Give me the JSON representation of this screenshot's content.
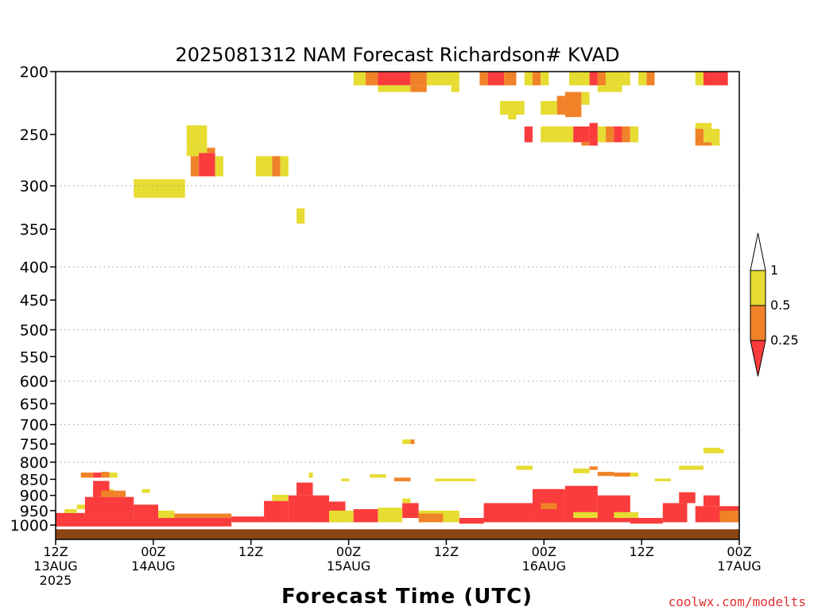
{
  "chart_data": {
    "type": "heatmap",
    "title": "2025081312 NAM Forecast Richardson# KVAD",
    "xlabel": "Forecast Time (UTC)",
    "ylabel": "",
    "y_scale": "log-pressure",
    "ylim": [
      1000,
      200
    ],
    "xlim": [
      0,
      84
    ],
    "y_ticks": [
      200,
      250,
      300,
      350,
      400,
      450,
      500,
      550,
      600,
      650,
      700,
      750,
      800,
      850,
      900,
      950,
      1000
    ],
    "y_gridlines": [
      300,
      400,
      500,
      600,
      700,
      800
    ],
    "x_ticks": [
      {
        "hour": 0,
        "line1": "12Z",
        "line2": "13AUG",
        "line3": "2025"
      },
      {
        "hour": 12,
        "line1": "00Z",
        "line2": "14AUG",
        "line3": ""
      },
      {
        "hour": 24,
        "line1": "12Z",
        "line2": "",
        "line3": ""
      },
      {
        "hour": 36,
        "line1": "00Z",
        "line2": "15AUG",
        "line3": ""
      },
      {
        "hour": 48,
        "line1": "12Z",
        "line2": "",
        "line3": ""
      },
      {
        "hour": 60,
        "line1": "00Z",
        "line2": "16AUG",
        "line3": ""
      },
      {
        "hour": 72,
        "line1": "12Z",
        "line2": "",
        "line3": ""
      },
      {
        "hour": 84,
        "line1": "00Z",
        "line2": "17AUG",
        "line3": ""
      }
    ],
    "legend": {
      "placement": "right",
      "labels": [
        "1",
        "0.5",
        "0.25"
      ],
      "bins": [
        {
          "range": "> 1",
          "color": "#ffffff"
        },
        {
          "range": "0.5 - 1",
          "color": "#e6dc32"
        },
        {
          "range": "0.25 - 0.5",
          "color": "#f08228"
        },
        {
          "range": "< 0.25",
          "color": "#fa3c3c"
        }
      ]
    },
    "colors": {
      "yellow": "#e6dc32",
      "orange": "#f08228",
      "red": "#fa3c3c",
      "ground": "#8b4513"
    },
    "surface_pressure": 1015,
    "cells": [
      [
        9.6,
        15.9,
        293,
        313,
        "y"
      ],
      [
        16.1,
        18.6,
        242,
        264,
        "y"
      ],
      [
        16.1,
        18.6,
        264,
        270,
        "y"
      ],
      [
        16.6,
        17.6,
        270,
        290,
        "o"
      ],
      [
        17.6,
        19.6,
        267,
        290,
        "r"
      ],
      [
        18.6,
        19.6,
        262,
        267,
        "o"
      ],
      [
        19.6,
        20.6,
        270,
        290,
        "y"
      ],
      [
        24.6,
        26.6,
        270,
        290,
        "y"
      ],
      [
        26.6,
        27.6,
        270,
        290,
        "o"
      ],
      [
        27.6,
        28.6,
        270,
        290,
        "y"
      ],
      [
        29.6,
        30.6,
        325,
        343,
        "y"
      ],
      [
        36.6,
        38.1,
        200,
        210,
        "y"
      ],
      [
        38.1,
        39.6,
        200,
        210,
        "o"
      ],
      [
        39.6,
        40.6,
        200,
        210,
        "y"
      ],
      [
        39.6,
        43.6,
        200,
        210,
        "r"
      ],
      [
        39.6,
        43.6,
        210,
        215,
        "y"
      ],
      [
        43.6,
        45.6,
        200,
        210,
        "o"
      ],
      [
        43.6,
        45.6,
        210,
        215,
        "o"
      ],
      [
        45.6,
        47.6,
        200,
        210,
        "y"
      ],
      [
        47.6,
        49.6,
        200,
        210,
        "y"
      ],
      [
        48.6,
        49.6,
        210,
        215,
        "y"
      ],
      [
        52.1,
        53.1,
        200,
        210,
        "o"
      ],
      [
        53.1,
        55.1,
        200,
        210,
        "r"
      ],
      [
        55.1,
        56.6,
        200,
        210,
        "o"
      ],
      [
        57.6,
        58.6,
        200,
        210,
        "y"
      ],
      [
        58.6,
        59.6,
        200,
        210,
        "o"
      ],
      [
        59.6,
        60.6,
        200,
        210,
        "y"
      ],
      [
        63.1,
        65.6,
        200,
        210,
        "y"
      ],
      [
        65.6,
        66.6,
        200,
        210,
        "r"
      ],
      [
        66.6,
        67.6,
        200,
        210,
        "o"
      ],
      [
        67.6,
        70.6,
        200,
        210,
        "y"
      ],
      [
        66.6,
        69.6,
        210,
        215,
        "y"
      ],
      [
        71.6,
        72.6,
        200,
        210,
        "y"
      ],
      [
        72.6,
        73.6,
        200,
        210,
        "o"
      ],
      [
        78.6,
        79.6,
        200,
        210,
        "y"
      ],
      [
        79.6,
        82.6,
        200,
        210,
        "r"
      ],
      [
        54.6,
        57.6,
        222,
        233,
        "y"
      ],
      [
        55.6,
        56.6,
        233,
        237,
        "y"
      ],
      [
        59.6,
        61.6,
        222,
        233,
        "y"
      ],
      [
        61.6,
        62.6,
        218,
        233,
        "o"
      ],
      [
        62.6,
        64.6,
        215,
        235,
        "o"
      ],
      [
        64.6,
        65.6,
        215,
        225,
        "y"
      ],
      [
        57.6,
        58.6,
        243,
        257,
        "r"
      ],
      [
        59.6,
        63.6,
        243,
        257,
        "y"
      ],
      [
        63.6,
        65.6,
        243,
        257,
        "r"
      ],
      [
        65.6,
        66.6,
        240,
        260,
        "r"
      ],
      [
        64.6,
        65.6,
        257,
        260,
        "o"
      ],
      [
        66.6,
        67.6,
        243,
        257,
        "y"
      ],
      [
        67.6,
        68.6,
        243,
        257,
        "o"
      ],
      [
        68.6,
        69.6,
        243,
        257,
        "r"
      ],
      [
        69.6,
        70.6,
        243,
        257,
        "o"
      ],
      [
        70.6,
        71.6,
        243,
        257,
        "y"
      ],
      [
        78.6,
        80.6,
        240,
        245,
        "y"
      ],
      [
        78.6,
        79.6,
        245,
        260,
        "o"
      ],
      [
        79.6,
        81.6,
        245,
        257,
        "y"
      ],
      [
        80.6,
        81.6,
        257,
        260,
        "y"
      ],
      [
        79.6,
        80.6,
        257,
        260,
        "o"
      ],
      [
        42.6,
        43.6,
        738,
        750,
        "y"
      ],
      [
        43.6,
        44.1,
        738,
        750,
        "o"
      ],
      [
        79.6,
        81.6,
        760,
        775,
        "y"
      ],
      [
        81.6,
        82.1,
        764,
        775,
        "y"
      ],
      [
        56.6,
        58.6,
        810,
        822,
        "y"
      ],
      [
        38.6,
        40.6,
        835,
        845,
        "y"
      ],
      [
        46.6,
        51.6,
        848,
        856,
        "y"
      ],
      [
        76.6,
        79.6,
        810,
        822,
        "y"
      ],
      [
        73.6,
        75.6,
        848,
        856,
        "y"
      ],
      [
        3.1,
        4.6,
        830,
        845,
        "o"
      ],
      [
        4.6,
        5.6,
        830,
        845,
        "r"
      ],
      [
        5.6,
        6.6,
        828,
        845,
        "o"
      ],
      [
        6.6,
        7.6,
        830,
        845,
        "y"
      ],
      [
        6.1,
        7.1,
        880,
        892,
        "y"
      ],
      [
        10.6,
        11.6,
        880,
        892,
        "y"
      ],
      [
        31.1,
        31.6,
        830,
        845,
        "y"
      ],
      [
        35.1,
        36.1,
        848,
        856,
        "y"
      ],
      [
        41.6,
        43.6,
        845,
        856,
        "o"
      ],
      [
        63.6,
        65.6,
        818,
        832,
        "y"
      ],
      [
        65.6,
        66.6,
        812,
        822,
        "o"
      ],
      [
        66.6,
        68.6,
        828,
        840,
        "o"
      ],
      [
        68.6,
        70.6,
        830,
        842,
        "o"
      ],
      [
        70.6,
        71.6,
        830,
        842,
        "y"
      ],
      [
        0.0,
        21.6,
        975,
        1005,
        "r"
      ],
      [
        0.0,
        3.6,
        958,
        975,
        "r"
      ],
      [
        1.1,
        2.6,
        945,
        958,
        "y"
      ],
      [
        2.6,
        3.6,
        930,
        945,
        "y"
      ],
      [
        3.6,
        9.6,
        905,
        975,
        "r"
      ],
      [
        4.6,
        6.6,
        855,
        905,
        "r"
      ],
      [
        5.6,
        8.6,
        885,
        905,
        "o"
      ],
      [
        9.6,
        12.6,
        930,
        975,
        "r"
      ],
      [
        12.6,
        14.6,
        950,
        975,
        "y"
      ],
      [
        14.6,
        21.6,
        960,
        975,
        "o"
      ],
      [
        21.6,
        25.6,
        970,
        990,
        "r"
      ],
      [
        25.6,
        28.6,
        918,
        990,
        "r"
      ],
      [
        26.6,
        28.6,
        898,
        918,
        "y"
      ],
      [
        28.6,
        33.6,
        900,
        990,
        "r"
      ],
      [
        29.6,
        31.6,
        860,
        900,
        "r"
      ],
      [
        31.6,
        35.6,
        920,
        990,
        "r"
      ],
      [
        33.6,
        36.6,
        950,
        990,
        "y"
      ],
      [
        36.6,
        39.6,
        945,
        990,
        "r"
      ],
      [
        39.6,
        42.6,
        940,
        990,
        "y"
      ],
      [
        42.6,
        44.6,
        925,
        975,
        "r"
      ],
      [
        42.6,
        43.6,
        910,
        925,
        "y"
      ],
      [
        44.6,
        49.6,
        950,
        990,
        "y"
      ],
      [
        44.6,
        47.6,
        960,
        990,
        "o"
      ],
      [
        49.6,
        52.6,
        975,
        995,
        "r"
      ],
      [
        52.6,
        58.6,
        925,
        990,
        "r"
      ],
      [
        58.6,
        62.6,
        880,
        990,
        "r"
      ],
      [
        59.6,
        61.6,
        925,
        945,
        "o"
      ],
      [
        62.6,
        66.6,
        870,
        990,
        "r"
      ],
      [
        63.6,
        66.6,
        955,
        975,
        "y"
      ],
      [
        66.6,
        70.6,
        900,
        990,
        "r"
      ],
      [
        68.6,
        71.6,
        955,
        975,
        "y"
      ],
      [
        70.6,
        74.6,
        975,
        995,
        "r"
      ],
      [
        74.6,
        77.6,
        925,
        990,
        "r"
      ],
      [
        76.6,
        78.6,
        890,
        925,
        "r"
      ],
      [
        78.6,
        84.0,
        935,
        990,
        "r"
      ],
      [
        79.6,
        81.6,
        900,
        935,
        "r"
      ],
      [
        81.6,
        84.0,
        950,
        990,
        "o"
      ]
    ]
  },
  "watermark": "coolwx.com/modelts"
}
